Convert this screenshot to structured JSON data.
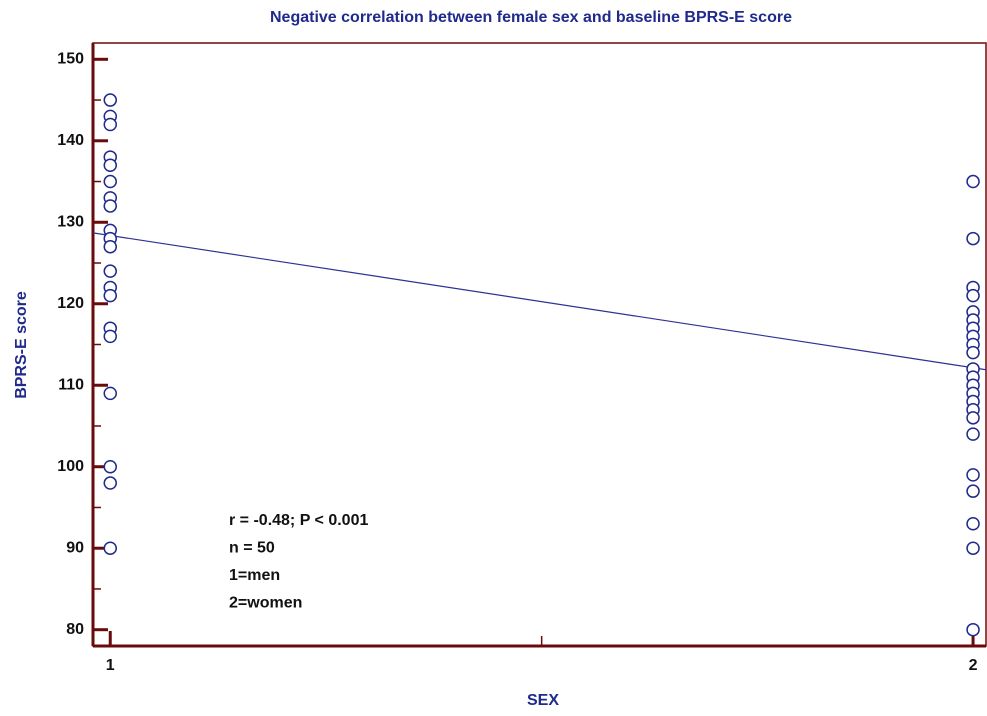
{
  "chart_data": {
    "type": "scatter",
    "title": "Negative correlation between female sex and baseline BPRS-E score",
    "x_label": "SEX",
    "y_label": "BPRS-E score",
    "xlim": [
      0.98,
      2.015
    ],
    "ylim": [
      78,
      152
    ],
    "xticks": [
      1,
      2
    ],
    "x_minor_ticks": [
      1.5
    ],
    "yticks": [
      80,
      90,
      100,
      110,
      120,
      130,
      140,
      150
    ],
    "y_minor_ticks": [
      85,
      95,
      105,
      115,
      125,
      135,
      145
    ],
    "series": [
      {
        "color": "#1f2a8c",
        "x": [
          1,
          1,
          1,
          1,
          1,
          1,
          1,
          1,
          1,
          1,
          1,
          1,
          1,
          1,
          1,
          1,
          1,
          1,
          1,
          1
        ],
        "values": [
          145,
          143,
          142,
          138,
          137,
          135,
          133,
          132,
          129,
          128,
          127,
          124,
          122,
          121,
          117,
          116,
          109,
          100,
          98,
          90
        ]
      },
      {
        "color": "#1f2a8c",
        "x": [
          2,
          2,
          2,
          2,
          2,
          2,
          2,
          2,
          2,
          2,
          2,
          2,
          2,
          2,
          2,
          2,
          2,
          2,
          2,
          2,
          2,
          2,
          2
        ],
        "values": [
          135,
          128,
          122,
          121,
          119,
          118,
          117,
          116,
          115,
          114,
          112,
          111,
          110,
          109,
          108,
          107,
          106,
          104,
          99,
          97,
          93,
          90,
          80
        ]
      }
    ],
    "fit_line": {
      "color": "#2e3192",
      "x": [
        0.98,
        2.015
      ],
      "values": [
        128.7,
        111.9
      ]
    },
    "annotations": [
      "r = -0.48; P < 0.001",
      "n = 50",
      "1=men",
      "2=women"
    ],
    "axis_color": "#6b0a0a"
  }
}
